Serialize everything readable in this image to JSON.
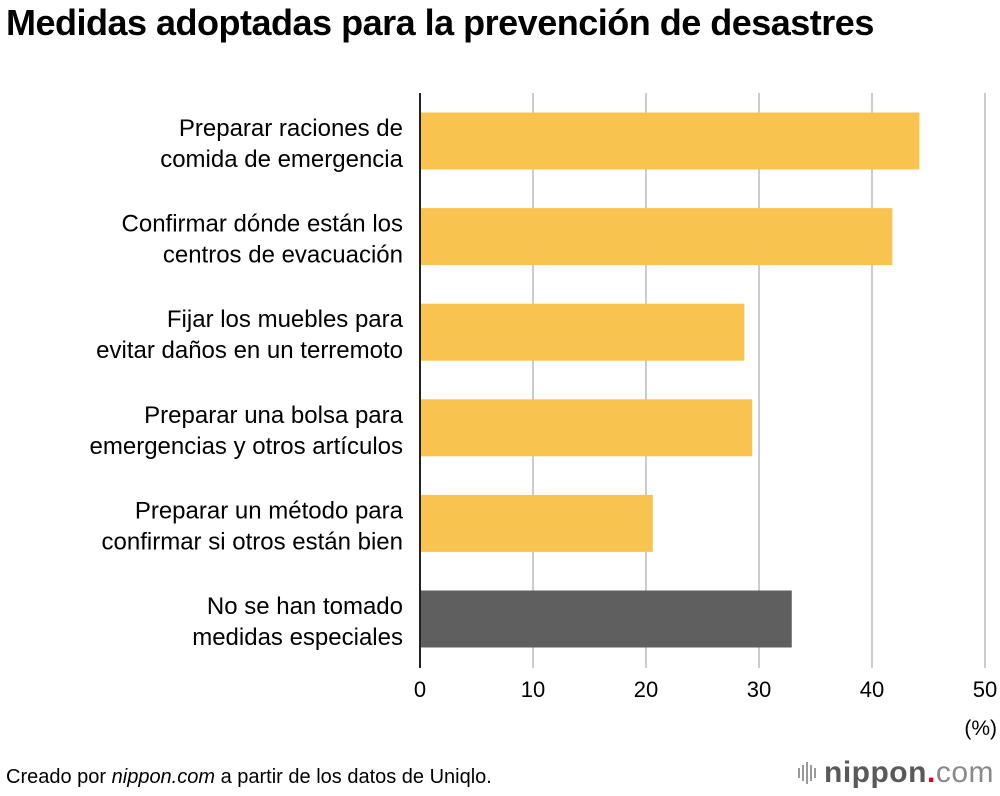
{
  "chart_data": {
    "type": "bar",
    "orientation": "horizontal",
    "title": "Medidas adoptadas para la prevención de desastres",
    "categories": [
      [
        "Preparar raciones de",
        "comida de emergencia"
      ],
      [
        "Confirmar dónde están los",
        "centros de evacuación"
      ],
      [
        "Fijar los muebles para",
        "evitar daños en un terremoto"
      ],
      [
        "Preparar una bolsa para",
        "emergencias y otros artículos"
      ],
      [
        "Preparar un método para",
        "confirmar si otros están bien"
      ],
      [
        "No se han tomado",
        "medidas especiales"
      ]
    ],
    "values": [
      44.2,
      41.8,
      28.7,
      29.4,
      20.6,
      32.9
    ],
    "bar_colors": [
      "#f8c44f",
      "#f8c44f",
      "#f8c44f",
      "#f8c44f",
      "#f8c44f",
      "#5f5f5f"
    ],
    "xlabel": "(%)",
    "ylabel": "",
    "xlim": [
      0,
      50
    ],
    "xticks": [
      0,
      10,
      20,
      30,
      40,
      50
    ],
    "grid": true,
    "legend": "none"
  },
  "footer": {
    "source_prefix": "Creado por ",
    "source_italic": "nippon.com",
    "source_suffix": " a partir de los datos de Uniqlo."
  },
  "logo": {
    "name": "nippon",
    "dot": ".",
    "tld": "com",
    "dot_color": "#e60012"
  },
  "colors": {
    "accent_bar": "#f8c44f",
    "neutral_bar": "#5f5f5f",
    "grid": "#cccccc",
    "axis": "#222222"
  }
}
